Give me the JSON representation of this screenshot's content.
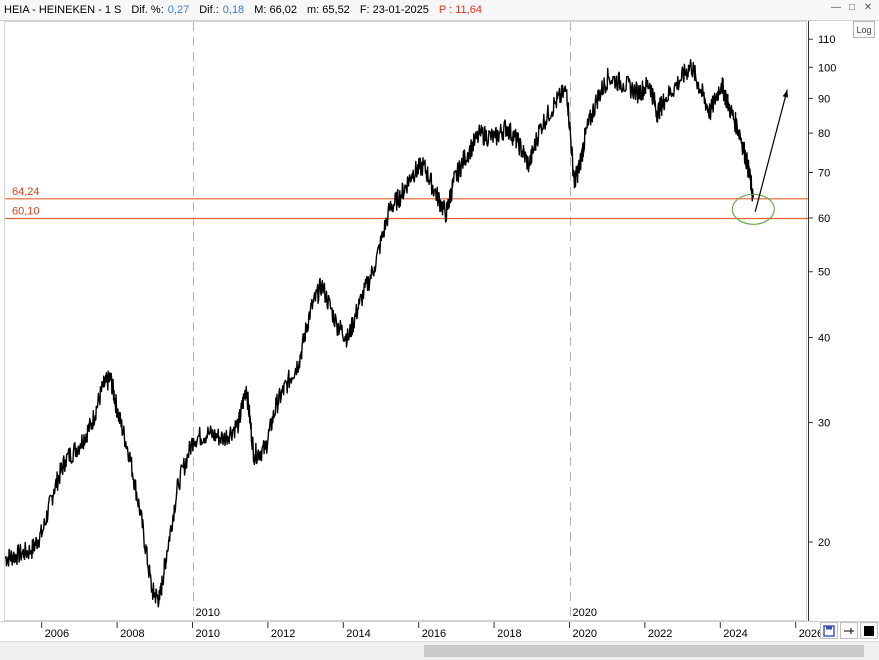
{
  "header": {
    "symbol": "HEIA - HEINEKEN - 1 S",
    "dif_pct_label": "Dif. %:",
    "dif_pct_value": "0,27",
    "dif_label": "Dif.:",
    "dif_value": "0,18",
    "max_label": "M: 66,02",
    "min_label": "m: 65,52",
    "date_label": "F: 23-01-2025",
    "p_label": "P : 11,64"
  },
  "log_button": "Log",
  "markers": [
    "2010",
    "2020"
  ],
  "levels": [
    {
      "label": "64,24",
      "value": 64.24
    },
    {
      "label": "60,10",
      "value": 60.1
    }
  ],
  "colors": {
    "price": "#000000",
    "level_line": "#e8642c",
    "level_text": "#d9401e",
    "ellipse": "#6aa84f",
    "header_blue": "#3a7bd5",
    "header_red": "#e0301e"
  },
  "icons": [
    "minimize-icon",
    "maximize-icon",
    "close-icon",
    "save-icon",
    "pin-icon",
    "color-icon"
  ],
  "chart_data": {
    "type": "line",
    "scale": "log",
    "ylim": [
      15.3,
      117
    ],
    "xlim": [
      2005.0,
      2026.3
    ],
    "y_ticks": [
      20,
      30,
      40,
      50,
      60,
      70,
      80,
      90,
      100,
      110
    ],
    "x_ticks": [
      "2006",
      "2008",
      "2010",
      "2012",
      "2014",
      "2016",
      "2018",
      "2020",
      "2022",
      "2024",
      "2026"
    ],
    "grid": false,
    "series": [
      {
        "x": [
          2005.0,
          2005.3,
          2005.7,
          2006.0,
          2006.3,
          2006.6,
          2007.0,
          2007.3,
          2007.6,
          2007.8,
          2008.0,
          2008.3,
          2008.6,
          2008.9,
          2009.1,
          2009.3,
          2009.6,
          2010.0,
          2010.4,
          2010.8,
          2011.2,
          2011.4,
          2011.6,
          2011.9,
          2012.2,
          2012.5,
          2012.8,
          2013.1,
          2013.4,
          2013.8,
          2014.1,
          2014.4,
          2014.8,
          2015.2,
          2015.5,
          2015.8,
          2016.1,
          2016.4,
          2016.7,
          2016.9,
          2017.2,
          2017.6,
          2018.0,
          2018.3,
          2018.6,
          2018.9,
          2019.2,
          2019.6,
          2019.9,
          2020.1,
          2020.25,
          2020.4,
          2020.7,
          2021.0,
          2021.4,
          2021.8,
          2022.1,
          2022.3,
          2022.5,
          2022.9,
          2023.2,
          2023.45,
          2023.7,
          2024.0,
          2024.2,
          2024.5,
          2024.7,
          2024.85
        ],
        "values": [
          19.0,
          19.2,
          19.5,
          20.8,
          24.0,
          26.5,
          28.0,
          30.0,
          34.0,
          35.0,
          31.0,
          27.0,
          22.0,
          17.0,
          16.5,
          19.5,
          24.5,
          28.5,
          29.0,
          28.5,
          30.0,
          34.0,
          27.0,
          27.5,
          32.0,
          34.5,
          37.0,
          44.0,
          48.0,
          42.0,
          40.0,
          45.0,
          51.0,
          62.0,
          65.0,
          70.0,
          72.0,
          66.0,
          61.0,
          68.0,
          74.0,
          80.0,
          79.0,
          82.0,
          78.0,
          72.0,
          82.0,
          89.0,
          93.0,
          68.0,
          72.0,
          80.0,
          90.0,
          97.0,
          95.0,
          92.0,
          95.0,
          86.0,
          90.0,
          96.0,
          101.0,
          93.0,
          86.0,
          95.0,
          88.0,
          80.0,
          72.0,
          64.5
        ]
      }
    ],
    "annotations": {
      "ellipse_center": [
        2024.85,
        62.0
      ],
      "arrow_from": [
        2024.9,
        61.5
      ],
      "arrow_to": [
        2025.75,
        93.0
      ]
    }
  }
}
